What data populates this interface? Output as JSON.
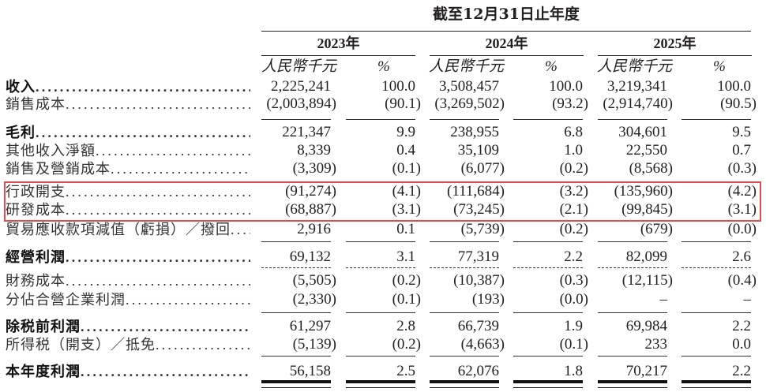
{
  "header": {
    "period_title": "截至12月31日止年度",
    "years": [
      "2023年",
      "2024年",
      "2025年"
    ],
    "unit_label": "人民幣千元",
    "pct_label": "%"
  },
  "rows": [
    {
      "label": "收入",
      "bold": true,
      "v": [
        "2,225,241",
        "100.0",
        "3,508,457",
        "100.0",
        "3,219,341",
        "100.0"
      ]
    },
    {
      "label": "銷售成本",
      "bold": false,
      "v": [
        "(2,003,894)",
        "(90.1)",
        "(3,269,502)",
        "(93.2)",
        "(2,914,740)",
        "(90.5)"
      ]
    },
    {
      "label": "毛利",
      "bold": true,
      "v": [
        "221,347",
        "9.9",
        "238,955",
        "6.8",
        "304,601",
        "9.5"
      ]
    },
    {
      "label": "其他收入淨額",
      "bold": false,
      "v": [
        "8,339",
        "0.4",
        "35,109",
        "1.0",
        "22,550",
        "0.7"
      ]
    },
    {
      "label": "銷售及營銷成本",
      "bold": false,
      "v": [
        "(3,309)",
        "(0.1)",
        "(6,077)",
        "(0.2)",
        "(8,568)",
        "(0.3)"
      ]
    },
    {
      "label": "行政開支",
      "bold": false,
      "v": [
        "(91,274)",
        "(4.1)",
        "(111,684)",
        "(3.2)",
        "(135,960)",
        "(4.2)"
      ]
    },
    {
      "label": "研發成本",
      "bold": false,
      "v": [
        "(68,887)",
        "(3.1)",
        "(73,245)",
        "(2.1)",
        "(99,845)",
        "(3.1)"
      ]
    },
    {
      "label": "貿易應收款項減值（虧損）／撥回",
      "bold": false,
      "v": [
        "2,916",
        "0.1",
        "(5,739)",
        "(0.2)",
        "(679)",
        "(0.0)"
      ]
    },
    {
      "label": "經營利潤",
      "bold": true,
      "v": [
        "69,132",
        "3.1",
        "77,319",
        "2.2",
        "82,099",
        "2.6"
      ]
    },
    {
      "label": "財務成本",
      "bold": false,
      "v": [
        "(5,505)",
        "(0.2)",
        "(10,387)",
        "(0.3)",
        "(12,115)",
        "(0.4)"
      ]
    },
    {
      "label": "分佔合營企業利潤",
      "bold": false,
      "v": [
        "(2,330)",
        "(0.1)",
        "(193)",
        "(0.0)",
        "–",
        "–"
      ]
    },
    {
      "label": "除税前利潤",
      "bold": true,
      "v": [
        "61,297",
        "2.8",
        "66,739",
        "1.9",
        "69,984",
        "2.2"
      ]
    },
    {
      "label": "所得税（開支）／抵免",
      "bold": false,
      "v": [
        "(5,139)",
        "(0.2)",
        "(4,663)",
        "(0.1)",
        "233",
        "0.0"
      ]
    },
    {
      "label": "本年度利潤",
      "bold": true,
      "v": [
        "56,158",
        "2.5",
        "62,076",
        "1.8",
        "70,217",
        "2.2"
      ]
    }
  ],
  "highlight": {
    "rows": [
      "行政開支",
      "研發成本"
    ],
    "color": "#e04c50"
  }
}
